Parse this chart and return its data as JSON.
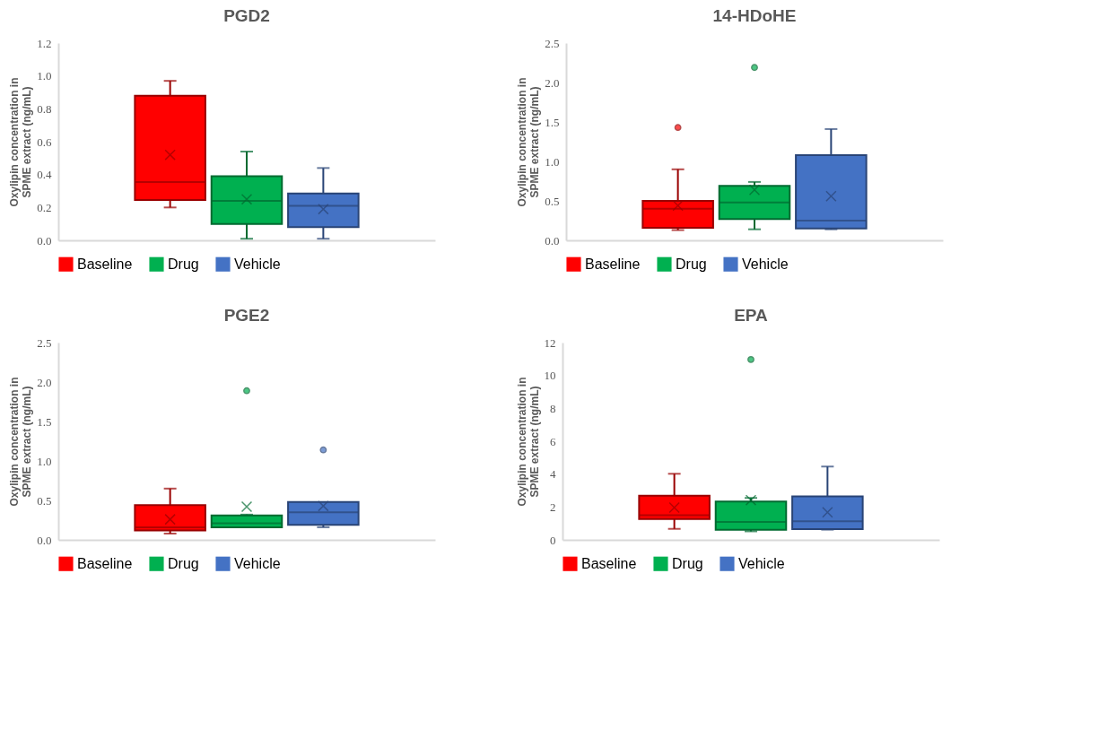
{
  "chart_data": [
    {
      "type": "box",
      "title": "PGD2",
      "ylabel": "Oxylipin concentration in SPME extract (ng/mL)",
      "categories": [
        null
      ],
      "legend": "bottom",
      "grid": false,
      "ylim": [
        0,
        1.2
      ],
      "yticks": [
        {
          "value": 0,
          "label": "0.0"
        },
        {
          "value": 0.2,
          "label": "0.2"
        },
        {
          "value": 0.4,
          "label": "0.4"
        },
        {
          "value": 0.6,
          "label": "0.6"
        },
        {
          "value": 0.8,
          "label": "0.8"
        },
        {
          "value": 1,
          "label": "1.0"
        },
        {
          "value": 1.2,
          "label": "1.2"
        }
      ],
      "series": [
        {
          "name": "Baseline",
          "color": "#ff0000",
          "boxes": [
            {
              "low": 0.2,
              "q1": 0.245,
              "median": 0.355,
              "q3": 0.88,
              "high": 0.97,
              "mean": 0.52
            }
          ]
        },
        {
          "name": "Drug",
          "color": "#00b050",
          "boxes": [
            {
              "low": 0.01,
              "q1": 0.1,
              "median": 0.24,
              "q3": 0.39,
              "high": 0.54,
              "mean": 0.25
            }
          ]
        },
        {
          "name": "Vehicle",
          "color": "#4472c4",
          "boxes": [
            {
              "low": 0.01,
              "q1": 0.08,
              "median": 0.21,
              "q3": 0.285,
              "high": 0.44,
              "mean": 0.19
            }
          ]
        }
      ]
    },
    {
      "type": "box",
      "title": "14-HDoHE",
      "ylabel": "Oxylipin concentration in SPME extract (ng/mL)",
      "categories": [
        null
      ],
      "legend": "bottom",
      "grid": false,
      "ylim": [
        0,
        2.5
      ],
      "yticks": [
        {
          "value": 0,
          "label": "0.0"
        },
        0.5,
        {
          "value": 1,
          "label": "1.0"
        },
        1.5,
        {
          "value": 2,
          "label": "2.0"
        },
        2.5
      ],
      "series": [
        {
          "name": "Baseline",
          "color": "#ff0000",
          "boxes": [
            {
              "low": 0.13,
              "q1": 0.16,
              "median": 0.4,
              "q3": 0.5,
              "high": 0.9,
              "mean": 0.44,
              "outliers": [
                1.43
              ]
            }
          ]
        },
        {
          "name": "Drug",
          "color": "#00b050",
          "boxes": [
            {
              "low": 0.14,
              "q1": 0.27,
              "median": 0.48,
              "q3": 0.69,
              "high": 0.74,
              "mean": 0.64,
              "outliers": [
                2.19
              ]
            }
          ]
        },
        {
          "name": "Vehicle",
          "color": "#4472c4",
          "boxes": [
            {
              "low": 0.14,
              "q1": 0.15,
              "median": 0.25,
              "q3": 1.08,
              "high": 1.41,
              "mean": 0.56
            }
          ]
        }
      ]
    },
    {
      "type": "box",
      "title": "PGE2",
      "ylabel": "Oxylipin concentration in SPME extract (ng/mL)",
      "categories": [
        null
      ],
      "legend": "bottom",
      "grid": false,
      "ylim": [
        0,
        2.5
      ],
      "yticks": [
        {
          "value": 0,
          "label": "0.0"
        },
        0.5,
        {
          "value": 1,
          "label": "1.0"
        },
        1.5,
        {
          "value": 2,
          "label": "2.0"
        },
        2.5
      ],
      "series": [
        {
          "name": "Baseline",
          "color": "#ff0000",
          "boxes": [
            {
              "low": 0.08,
              "q1": 0.12,
              "median": 0.16,
              "q3": 0.44,
              "high": 0.65,
              "mean": 0.26
            }
          ]
        },
        {
          "name": "Drug",
          "color": "#00b050",
          "boxes": [
            {
              "low": 0.16,
              "q1": 0.16,
              "median": 0.21,
              "q3": 0.31,
              "high": 0.32,
              "mean": 0.42,
              "outliers": [
                1.89
              ]
            }
          ]
        },
        {
          "name": "Vehicle",
          "color": "#4472c4",
          "boxes": [
            {
              "low": 0.16,
              "q1": 0.19,
              "median": 0.35,
              "q3": 0.48,
              "high": 0.48,
              "mean": 0.43,
              "outliers": [
                1.14
              ]
            }
          ]
        }
      ]
    },
    {
      "type": "box",
      "title": "EPA",
      "ylabel": "Oxylipin concentration in SPME extract (ng/mL)",
      "categories": [
        null
      ],
      "legend": "bottom",
      "grid": false,
      "ylim": [
        0,
        12
      ],
      "yticks": [
        0,
        2,
        4,
        6,
        8,
        10,
        12
      ],
      "series": [
        {
          "name": "Baseline",
          "color": "#ff0000",
          "boxes": [
            {
              "low": 0.67,
              "q1": 1.27,
              "median": 1.5,
              "q3": 2.69,
              "high": 4.02,
              "mean": 1.96
            }
          ]
        },
        {
          "name": "Drug",
          "color": "#00b050",
          "boxes": [
            {
              "low": 0.52,
              "q1": 0.62,
              "median": 1.09,
              "q3": 2.33,
              "high": 2.55,
              "mean": 2.42,
              "outliers": [
                10.97
              ]
            }
          ]
        },
        {
          "name": "Vehicle",
          "color": "#4472c4",
          "boxes": [
            {
              "low": 0.62,
              "q1": 0.65,
              "median": 1.13,
              "q3": 2.64,
              "high": 4.46,
              "mean": 1.68
            }
          ]
        }
      ]
    }
  ]
}
